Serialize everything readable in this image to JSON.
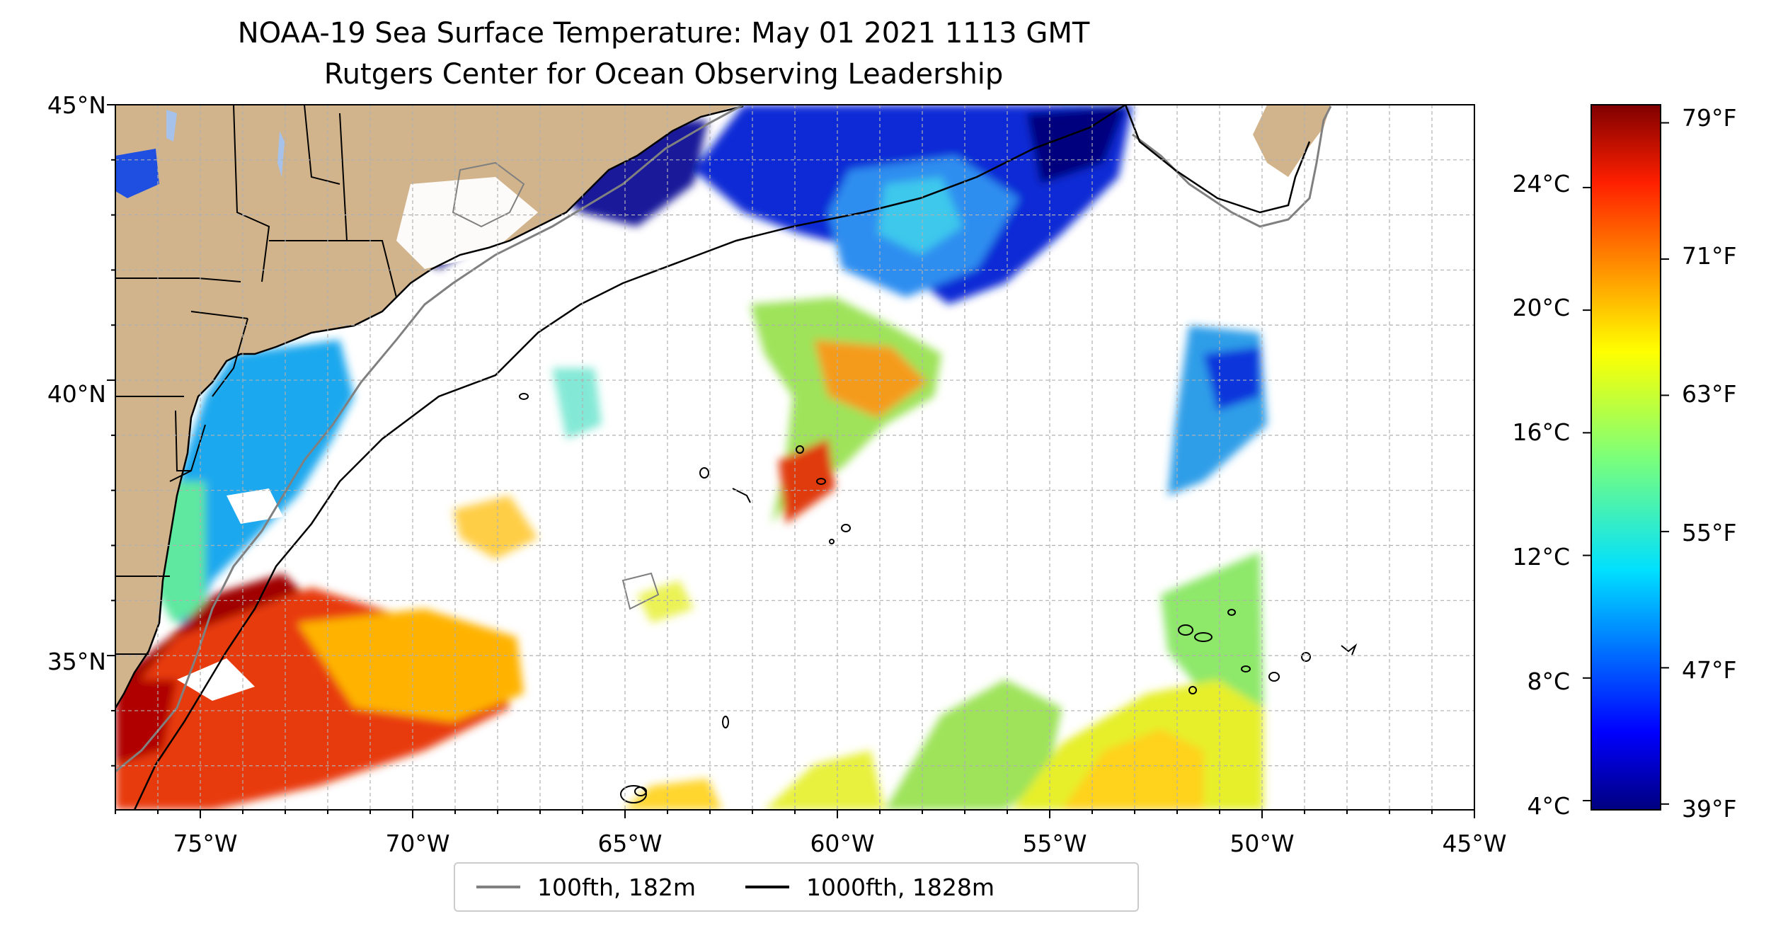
{
  "title": {
    "line1": "NOAA-19 Sea Surface Temperature: May 01 2021 1113 GMT",
    "line2": "Rutgers Center for Ocean Observing Leadership"
  },
  "map": {
    "lon_range": [
      -77,
      -45
    ],
    "lat_range": [
      32.2,
      45
    ],
    "grid": true,
    "land_color": "#d2b48c",
    "lake_color": "#a6c2ea",
    "x_ticks": [
      {
        "value": -75,
        "label": "75°W"
      },
      {
        "value": -70,
        "label": "70°W"
      },
      {
        "value": -65,
        "label": "65°W"
      },
      {
        "value": -60,
        "label": "60°W"
      },
      {
        "value": -55,
        "label": "55°W"
      },
      {
        "value": -50,
        "label": "50°W"
      },
      {
        "value": -45,
        "label": "45°W"
      }
    ],
    "y_ticks": [
      {
        "value": 45,
        "label": "45°N"
      },
      {
        "value": 40,
        "label": "40°N"
      },
      {
        "value": 35,
        "label": "35°N"
      }
    ]
  },
  "colorbar": {
    "colormap": "jet",
    "range_c": [
      3.7,
      26.7
    ],
    "celsius_ticks": [
      {
        "value": 24,
        "label": "24°C"
      },
      {
        "value": 20,
        "label": "20°C"
      },
      {
        "value": 16,
        "label": "16°C"
      },
      {
        "value": 12,
        "label": "12°C"
      },
      {
        "value": 8,
        "label": "8°C"
      },
      {
        "value": 4,
        "label": "4°C"
      }
    ],
    "fahrenheit_ticks": [
      {
        "value": 79,
        "label": "79°F"
      },
      {
        "value": 71,
        "label": "71°F"
      },
      {
        "value": 63,
        "label": "63°F"
      },
      {
        "value": 55,
        "label": "55°F"
      },
      {
        "value": 47,
        "label": "47°F"
      },
      {
        "value": 39,
        "label": "39°F"
      }
    ]
  },
  "legend": {
    "items": [
      {
        "label": "100fth, 182m",
        "color": "#808080"
      },
      {
        "label": "1000fth, 1828m",
        "color": "#000000"
      }
    ]
  }
}
